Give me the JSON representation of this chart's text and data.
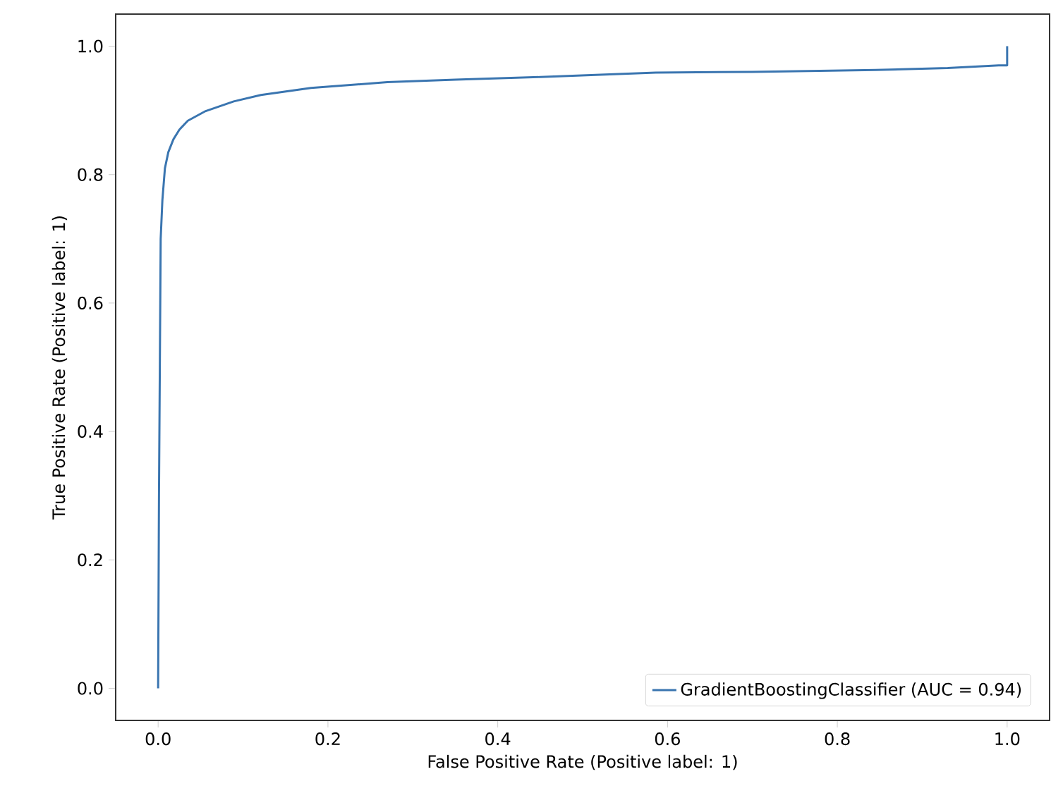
{
  "chart_data": {
    "type": "line",
    "xlabel": "False Positive Rate (Positive label: 1)",
    "ylabel": "True Positive Rate (Positive label: 1)",
    "xlim": [
      -0.05,
      1.05
    ],
    "ylim": [
      -0.05,
      1.05
    ],
    "xticks": [
      {
        "value": 0,
        "label": "0.0"
      },
      {
        "value": 0.2,
        "label": "0.2"
      },
      {
        "value": 0.4,
        "label": "0.4"
      },
      {
        "value": 0.6,
        "label": "0.6"
      },
      {
        "value": 0.8,
        "label": "0.8"
      },
      {
        "value": 1,
        "label": "1.0"
      }
    ],
    "yticks": [
      {
        "value": 0,
        "label": "0.0"
      },
      {
        "value": 0.2,
        "label": "0.2"
      },
      {
        "value": 0.4,
        "label": "0.4"
      },
      {
        "value": 0.6,
        "label": "0.6"
      },
      {
        "value": 0.8,
        "label": "0.8"
      },
      {
        "value": 1,
        "label": "1.0"
      }
    ],
    "legend": "bottom right",
    "marker": "none",
    "line_style": "solid",
    "series": [
      {
        "name": "GradientBoostingClassifier (AUC = 0.94)",
        "color": "#3a75b0",
        "x": [
          0,
          0.001,
          0.002,
          0.003,
          0.005,
          0.008,
          0.012,
          0.018,
          0.025,
          0.035,
          0.056,
          0.089,
          0.121,
          0.18,
          0.27,
          0.35,
          0.45,
          0.586,
          0.7,
          0.845,
          0.93,
          0.99,
          1.0,
          1.0
        ],
        "values": [
          0,
          0.3,
          0.5,
          0.7,
          0.76,
          0.81,
          0.835,
          0.855,
          0.87,
          0.884,
          0.899,
          0.914,
          0.924,
          0.935,
          0.944,
          0.948,
          0.952,
          0.959,
          0.96,
          0.963,
          0.966,
          0.97,
          0.97,
          1.0
        ]
      }
    ]
  }
}
